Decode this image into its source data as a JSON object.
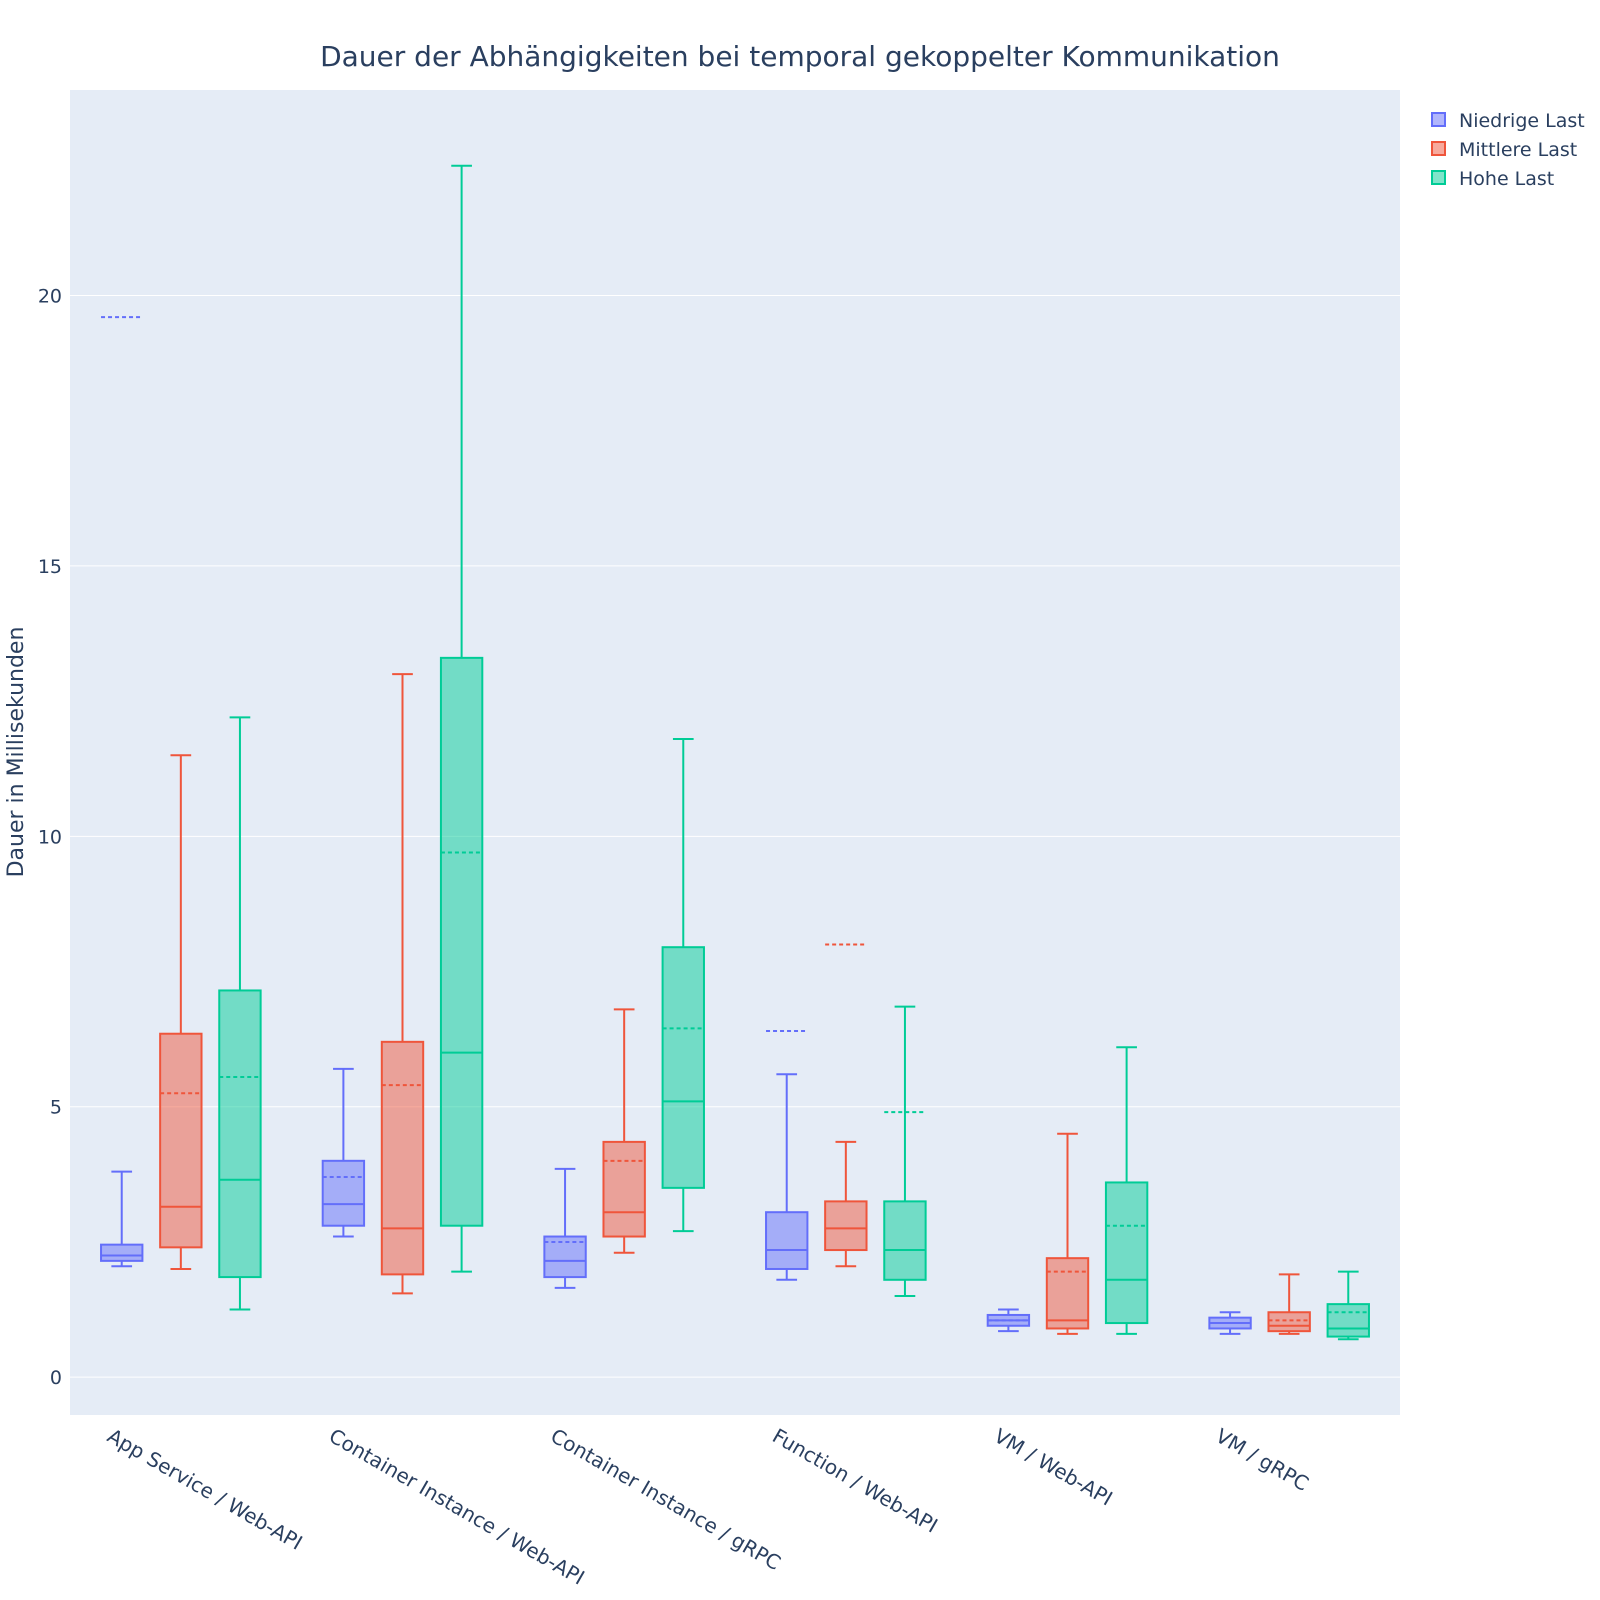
{
  "chart_data": {
    "type": "box",
    "title": "Dauer der Abhängigkeiten bei temporal gekoppelter Kommunikation",
    "xlabel": "",
    "ylabel": "Dauer in Millisekunden",
    "ylim": [
      -0.7,
      23.8
    ],
    "yticks": [
      "0",
      "5",
      "10",
      "15",
      "20"
    ],
    "grid": true,
    "legend_position": "top-right",
    "categories": [
      "App Service / Web-API",
      "Container Instance / Web-API",
      "Container Instance / gRPC",
      "Function / Web-API",
      "VM / Web-API",
      "VM / gRPC"
    ],
    "series": [
      {
        "name": "Niedrige Last",
        "color": "#636efa",
        "boxes": [
          {
            "min": 2.05,
            "q1": 2.15,
            "median": 2.25,
            "q3": 2.45,
            "max": 3.8,
            "mean": 19.6
          },
          {
            "min": 2.6,
            "q1": 2.8,
            "median": 3.2,
            "q3": 4.0,
            "max": 5.7,
            "mean": 3.7
          },
          {
            "min": 1.65,
            "q1": 1.85,
            "median": 2.15,
            "q3": 2.6,
            "max": 3.85,
            "mean": 2.5
          },
          {
            "min": 1.8,
            "q1": 2.0,
            "median": 2.35,
            "q3": 3.05,
            "max": 5.6,
            "mean": 6.4
          },
          {
            "min": 0.85,
            "q1": 0.95,
            "median": 1.05,
            "q3": 1.15,
            "max": 1.25,
            "mean": 1.05
          },
          {
            "min": 0.8,
            "q1": 0.9,
            "median": 1.0,
            "q3": 1.1,
            "max": 1.2,
            "mean": 1.0
          }
        ]
      },
      {
        "name": "Mittlere Last",
        "color": "#ef553b",
        "boxes": [
          {
            "min": 2.0,
            "q1": 2.4,
            "median": 3.15,
            "q3": 6.35,
            "max": 11.5,
            "mean": 5.25
          },
          {
            "min": 1.55,
            "q1": 1.9,
            "median": 2.75,
            "q3": 6.2,
            "max": 13.0,
            "mean": 5.4
          },
          {
            "min": 2.3,
            "q1": 2.6,
            "median": 3.05,
            "q3": 4.35,
            "max": 6.8,
            "mean": 4.0
          },
          {
            "min": 2.05,
            "q1": 2.35,
            "median": 2.75,
            "q3": 3.25,
            "max": 4.35,
            "mean": 8.0
          },
          {
            "min": 0.8,
            "q1": 0.9,
            "median": 1.05,
            "q3": 2.2,
            "max": 4.5,
            "mean": 1.95
          },
          {
            "min": 0.8,
            "q1": 0.85,
            "median": 0.95,
            "q3": 1.2,
            "max": 1.9,
            "mean": 1.05
          }
        ]
      },
      {
        "name": "Hohe Last",
        "color": "#00cc96",
        "boxes": [
          {
            "min": 1.25,
            "q1": 1.85,
            "median": 3.65,
            "q3": 7.15,
            "max": 12.2,
            "mean": 5.55
          },
          {
            "min": 1.95,
            "q1": 2.8,
            "median": 6.0,
            "q3": 13.3,
            "max": 22.4,
            "mean": 9.7
          },
          {
            "min": 2.7,
            "q1": 3.5,
            "median": 5.1,
            "q3": 7.95,
            "max": 11.8,
            "mean": 6.45
          },
          {
            "min": 1.5,
            "q1": 1.8,
            "median": 2.35,
            "q3": 3.25,
            "max": 6.85,
            "mean": 4.9
          },
          {
            "min": 0.8,
            "q1": 1.0,
            "median": 1.8,
            "q3": 3.6,
            "max": 6.1,
            "mean": 2.8
          },
          {
            "min": 0.7,
            "q1": 0.75,
            "median": 0.9,
            "q3": 1.35,
            "max": 1.95,
            "mean": 1.2
          }
        ]
      }
    ]
  }
}
